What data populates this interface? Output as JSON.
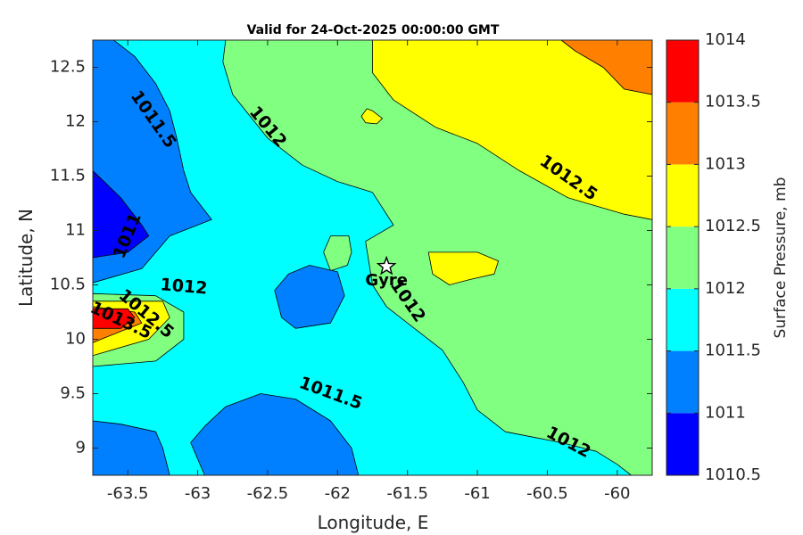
{
  "chart_data": {
    "type": "contour",
    "title": "Valid for 24-Oct-2025 00:00:00 GMT",
    "xlabel": "Longitude, E",
    "ylabel": "Latitude, N",
    "xlim": [
      -63.75,
      -59.75
    ],
    "ylim": [
      8.75,
      12.75
    ],
    "xticks": [
      -63.5,
      -63,
      -62.5,
      -62,
      -61.5,
      -61,
      -60.5,
      -60
    ],
    "xtick_labels": [
      "-63.5",
      "-63",
      "-62.5",
      "-62",
      "-61.5",
      "-61",
      "-60.5",
      "-60"
    ],
    "yticks": [
      9,
      9.5,
      10,
      10.5,
      11,
      11.5,
      12,
      12.5
    ],
    "ytick_labels": [
      "9",
      "9.5",
      "10",
      "10.5",
      "11",
      "11.5",
      "12",
      "12.5"
    ],
    "colorbar": {
      "label": "Surface Pressure, mb",
      "levels": [
        1010.5,
        1011,
        1011.5,
        1012,
        1012.5,
        1013,
        1013.5,
        1014
      ],
      "level_labels": [
        "1010.5",
        "1011",
        "1011.5",
        "1012",
        "1012.5",
        "1013",
        "1013.5",
        "1014"
      ],
      "colors": [
        "#0000ff",
        "#0080ff",
        "#00ffff",
        "#80ff80",
        "#ffff00",
        "#ff8000",
        "#ff0000",
        "#800000"
      ]
    },
    "regions": [
      {
        "level": 1011.5,
        "points": [
          [
            -63.75,
            8.75
          ],
          [
            -59.75,
            8.75
          ],
          [
            -59.75,
            12.75
          ],
          [
            -63.75,
            12.75
          ]
        ]
      },
      {
        "level": 1012,
        "points": [
          [
            -62.8,
            12.75
          ],
          [
            -59.75,
            12.75
          ],
          [
            -59.75,
            8.75
          ],
          [
            -59.9,
            8.75
          ],
          [
            -60.0,
            8.85
          ],
          [
            -60.15,
            8.97
          ],
          [
            -60.4,
            9.05
          ],
          [
            -60.6,
            9.1
          ],
          [
            -60.8,
            9.15
          ],
          [
            -61.0,
            9.35
          ],
          [
            -61.1,
            9.6
          ],
          [
            -61.25,
            9.9
          ],
          [
            -61.45,
            10.1
          ],
          [
            -61.65,
            10.3
          ],
          [
            -61.75,
            10.5
          ],
          [
            -61.8,
            10.9
          ],
          [
            -61.6,
            11.05
          ],
          [
            -61.75,
            11.35
          ],
          [
            -62.0,
            11.45
          ],
          [
            -62.25,
            11.6
          ],
          [
            -62.5,
            11.85
          ],
          [
            -62.75,
            12.25
          ],
          [
            -62.82,
            12.55
          ]
        ]
      },
      {
        "level": 1012.5,
        "points": [
          [
            -61.75,
            12.75
          ],
          [
            -60.4,
            12.75
          ],
          [
            -60.3,
            12.65
          ],
          [
            -60.1,
            12.5
          ],
          [
            -59.95,
            12.3
          ],
          [
            -59.75,
            12.25
          ],
          [
            -59.75,
            11.1
          ],
          [
            -59.95,
            11.15
          ],
          [
            -60.35,
            11.3
          ],
          [
            -60.7,
            11.55
          ],
          [
            -61.0,
            11.8
          ],
          [
            -61.3,
            11.95
          ],
          [
            -61.6,
            12.2
          ],
          [
            -61.75,
            12.45
          ]
        ]
      },
      {
        "level": 1013,
        "points": [
          [
            -60.4,
            12.75
          ],
          [
            -59.75,
            12.75
          ],
          [
            -59.75,
            12.25
          ],
          [
            -59.95,
            12.3
          ],
          [
            -60.1,
            12.5
          ],
          [
            -60.3,
            12.65
          ]
        ]
      },
      {
        "level": 1012.5,
        "points": [
          [
            -61.75,
            12.1
          ],
          [
            -61.68,
            12.03
          ],
          [
            -61.72,
            11.98
          ],
          [
            -61.8,
            11.99
          ],
          [
            -61.83,
            12.05
          ],
          [
            -61.79,
            12.12
          ]
        ]
      },
      {
        "level": 1012,
        "points": [
          [
            -62.05,
            10.95
          ],
          [
            -61.92,
            10.95
          ],
          [
            -61.9,
            10.8
          ],
          [
            -61.93,
            10.68
          ],
          [
            -62.05,
            10.63
          ],
          [
            -62.1,
            10.8
          ]
        ]
      },
      {
        "level": 1012.5,
        "points": [
          [
            -61.35,
            10.8
          ],
          [
            -61.0,
            10.8
          ],
          [
            -60.85,
            10.72
          ],
          [
            -60.88,
            10.6
          ],
          [
            -61.05,
            10.55
          ],
          [
            -61.2,
            10.5
          ],
          [
            -61.32,
            10.6
          ]
        ]
      },
      {
        "level": 1011,
        "points": [
          [
            -63.75,
            12.75
          ],
          [
            -63.6,
            12.75
          ],
          [
            -63.45,
            12.6
          ],
          [
            -63.3,
            12.35
          ],
          [
            -63.2,
            12.1
          ],
          [
            -63.15,
            11.85
          ],
          [
            -63.1,
            11.55
          ],
          [
            -63.05,
            11.35
          ],
          [
            -62.9,
            11.1
          ],
          [
            -63.0,
            11.05
          ],
          [
            -63.2,
            10.95
          ],
          [
            -63.4,
            10.65
          ],
          [
            -63.75,
            10.52
          ]
        ]
      },
      {
        "level": 1010.5,
        "points": [
          [
            -63.75,
            11.55
          ],
          [
            -63.55,
            11.3
          ],
          [
            -63.4,
            11.05
          ],
          [
            -63.35,
            10.95
          ],
          [
            -63.5,
            10.8
          ],
          [
            -63.75,
            10.75
          ]
        ]
      },
      {
        "level": 1011,
        "points": [
          [
            -62.2,
            10.68
          ],
          [
            -62.0,
            10.62
          ],
          [
            -61.95,
            10.4
          ],
          [
            -62.05,
            10.15
          ],
          [
            -62.3,
            10.1
          ],
          [
            -62.4,
            10.2
          ],
          [
            -62.45,
            10.45
          ],
          [
            -62.35,
            10.6
          ]
        ]
      },
      {
        "level": 1012,
        "points": [
          [
            -63.75,
            10.42
          ],
          [
            -63.3,
            10.4
          ],
          [
            -63.1,
            10.25
          ],
          [
            -63.1,
            10.0
          ],
          [
            -63.3,
            9.8
          ],
          [
            -63.75,
            9.75
          ]
        ]
      },
      {
        "level": 1012.5,
        "points": [
          [
            -63.75,
            10.35
          ],
          [
            -63.25,
            10.35
          ],
          [
            -63.2,
            10.2
          ],
          [
            -63.35,
            10.0
          ],
          [
            -63.75,
            9.85
          ]
        ]
      },
      {
        "level": 1013,
        "points": [
          [
            -63.75,
            10.3
          ],
          [
            -63.45,
            10.25
          ],
          [
            -63.4,
            10.15
          ],
          [
            -63.75,
            9.97
          ]
        ]
      },
      {
        "level": 1013.5,
        "points": [
          [
            -63.75,
            10.28
          ],
          [
            -63.5,
            10.28
          ],
          [
            -63.45,
            10.2
          ],
          [
            -63.55,
            10.1
          ],
          [
            -63.75,
            10.1
          ]
        ]
      },
      {
        "level": 1011,
        "points": [
          [
            -63.75,
            9.25
          ],
          [
            -63.55,
            9.22
          ],
          [
            -63.3,
            9.15
          ],
          [
            -63.25,
            9.0
          ],
          [
            -63.2,
            8.75
          ],
          [
            -63.75,
            8.75
          ]
        ]
      },
      {
        "level": 1011,
        "points": [
          [
            -62.95,
            8.75
          ],
          [
            -61.85,
            8.75
          ],
          [
            -61.9,
            9.0
          ],
          [
            -62.05,
            9.25
          ],
          [
            -62.3,
            9.45
          ],
          [
            -62.55,
            9.5
          ],
          [
            -62.8,
            9.38
          ],
          [
            -62.95,
            9.2
          ],
          [
            -63.05,
            9.05
          ]
        ]
      }
    ],
    "contour_labels": [
      {
        "text": "1011.5",
        "x": -63.32,
        "y": 12.02,
        "angle": 55
      },
      {
        "text": "1012",
        "x": -62.5,
        "y": 11.95,
        "angle": 50
      },
      {
        "text": "1012.5",
        "x": -60.35,
        "y": 11.48,
        "angle": 35
      },
      {
        "text": "1011",
        "x": -63.5,
        "y": 10.95,
        "angle": -68
      },
      {
        "text": "1012",
        "x": -63.1,
        "y": 10.48,
        "angle": 5
      },
      {
        "text": "1012.5",
        "x": -63.37,
        "y": 10.23,
        "angle": 40
      },
      {
        "text": "1013.5",
        "x": -63.55,
        "y": 10.17,
        "angle": 25
      },
      {
        "text": "1012",
        "x": -61.5,
        "y": 10.35,
        "angle": 55
      },
      {
        "text": "1011.5",
        "x": -62.05,
        "y": 9.5,
        "angle": 20
      },
      {
        "text": "1012",
        "x": -60.35,
        "y": 9.05,
        "angle": 28
      }
    ],
    "marker": {
      "label": "Gyre",
      "x": -61.65,
      "y": 10.67,
      "symbol": "star"
    }
  }
}
